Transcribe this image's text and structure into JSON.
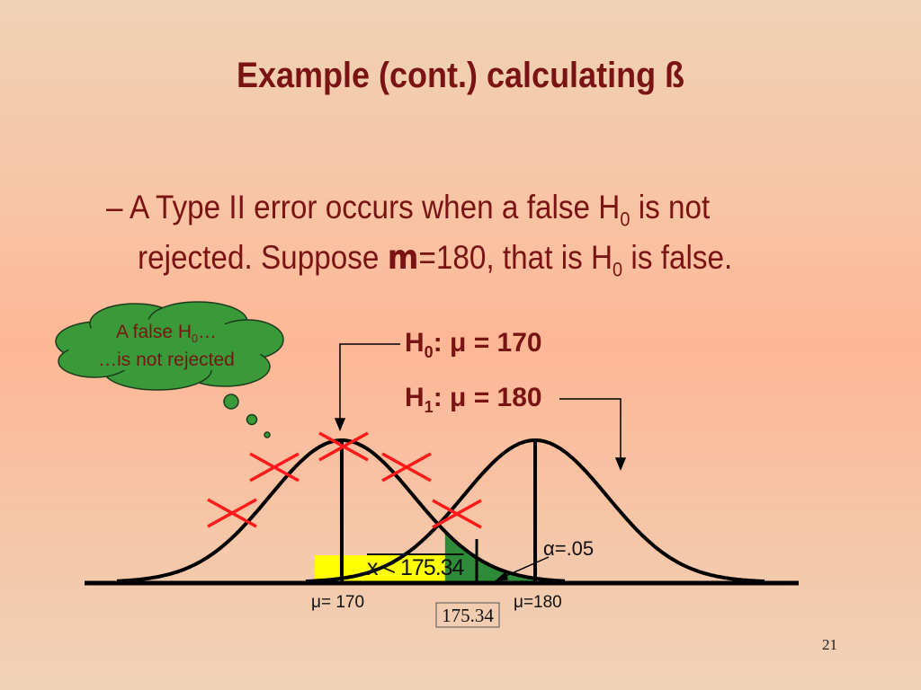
{
  "title": "Example (cont.) calculating ß",
  "bullet": {
    "dash": "–",
    "line1_a": "A Type II error occurs when a false H",
    "line1_sub": "0",
    "line1_b": " is not",
    "line2_a": "rejected. Suppose ",
    "mu_symbol": "m",
    "line2_b": "=180, that is H",
    "line2_sub": "0",
    "line2_c": " is false."
  },
  "cloud": {
    "line1": "A false H",
    "line1_sub": "0",
    "line1_end": "…",
    "line2": "…is not rejected",
    "color": "#3a9a3a"
  },
  "h0": {
    "label": "H",
    "sub": "0",
    "rest": ": μ = 170"
  },
  "h1": {
    "label": "H",
    "sub": "1",
    "rest": ": μ = 180"
  },
  "chart": {
    "mu0_label": "μ= 170",
    "mu1_label": "μ=180",
    "critical_box": "175.34",
    "region_label": "x < 175.34",
    "alpha_label": "α=.05",
    "mu0": 170,
    "mu1": 180,
    "critical": 175.34,
    "alpha": 0.05,
    "region_color": "#ffff00",
    "alpha_color": "#2e8b3a",
    "x_mark_color": "#ff1a1a"
  },
  "page_number": "21"
}
